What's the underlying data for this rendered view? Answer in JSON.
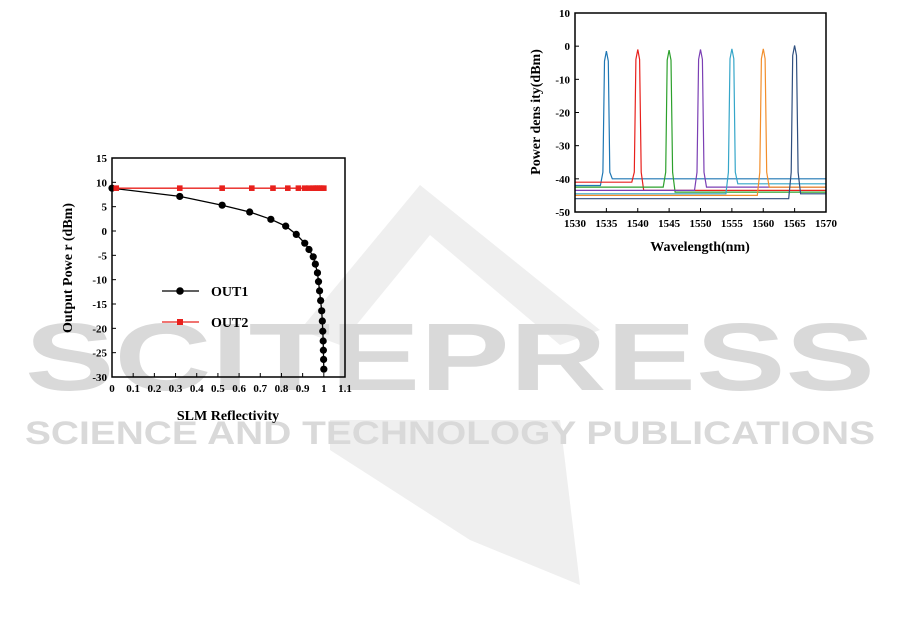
{
  "watermark": {
    "title": "SCITEPRESS",
    "subtitle": "SCIENCE AND TECHNOLOGY PUBLICATIONS",
    "color": "#d9d9d9"
  },
  "chart_data": [
    {
      "type": "line",
      "xlabel": "SLM Reflectivity",
      "ylabel": "Output Powe r (dBm)",
      "xlim": [
        0,
        1.1
      ],
      "ylim": [
        -30,
        15
      ],
      "x_ticks": [
        "0",
        "0.1",
        "0.2",
        "0.3",
        "0.4",
        "0.5",
        "0.6",
        "0.7",
        "0.8",
        "0.9",
        "1",
        "1.1"
      ],
      "y_ticks": [
        "15",
        "10",
        "5",
        "0",
        "-5",
        "-10",
        "-15",
        "-20",
        "-25",
        "-30"
      ],
      "legend_position": "center-left",
      "series": [
        {
          "name": "OUT1",
          "color": "#000000",
          "marker": "circle",
          "x": [
            0,
            0.32,
            0.52,
            0.65,
            0.75,
            0.82,
            0.87,
            0.91,
            0.93,
            0.95,
            0.96,
            0.97,
            0.975,
            0.98,
            0.985,
            0.99,
            0.993,
            0.995,
            0.997,
            0.998,
            0.999,
            1.0
          ],
          "y": [
            8.8,
            7.1,
            5.3,
            3.9,
            2.4,
            1.0,
            -0.7,
            -2.5,
            -3.8,
            -5.3,
            -6.8,
            -8.6,
            -10.4,
            -12.3,
            -14.3,
            -16.4,
            -18.5,
            -20.6,
            -22.6,
            -24.5,
            -26.4,
            -28.4
          ]
        },
        {
          "name": "OUT2",
          "color": "#e8201c",
          "marker": "square",
          "x": [
            0.02,
            0.32,
            0.52,
            0.66,
            0.76,
            0.83,
            0.88,
            0.91,
            0.93,
            0.95,
            0.96,
            0.97,
            0.98,
            0.99,
            1.0
          ],
          "y": [
            8.8,
            8.8,
            8.8,
            8.8,
            8.8,
            8.8,
            8.8,
            8.8,
            8.8,
            8.8,
            8.8,
            8.8,
            8.8,
            8.8,
            8.8
          ]
        }
      ]
    },
    {
      "type": "line",
      "xlabel": "Wavelength(nm)",
      "ylabel": "Power dens ity(dBm)",
      "xlim": [
        1530,
        1570
      ],
      "ylim": [
        -50,
        10
      ],
      "x_ticks": [
        "1530",
        "1535",
        "1540",
        "1545",
        "1550",
        "1555",
        "1560",
        "1565",
        "1570"
      ],
      "y_ticks": [
        "10",
        "0",
        "-10",
        "-20",
        "-30",
        "-40",
        "-50"
      ],
      "series": [
        {
          "color": "#1f77b4",
          "peak": 1535.0,
          "peak_y": -1.5,
          "floor_left": -42.0,
          "floor_right": -40.0
        },
        {
          "color": "#e8201c",
          "peak": 1540.0,
          "peak_y": -1.0,
          "floor_left": -41.0,
          "floor_right": -43.5
        },
        {
          "color": "#2ca02c",
          "peak": 1545.0,
          "peak_y": -1.2,
          "floor_left": -42.5,
          "floor_right": -44.0
        },
        {
          "color": "#7b3fb4",
          "peak": 1550.0,
          "peak_y": -1.0,
          "floor_left": -43.5,
          "floor_right": -42.5
        },
        {
          "color": "#35a6c9",
          "peak": 1555.0,
          "peak_y": -0.8,
          "floor_left": -44.5,
          "floor_right": -41.5
        },
        {
          "color": "#f28e2b",
          "peak": 1560.0,
          "peak_y": -0.8,
          "floor_left": -45.0,
          "floor_right": -42.5
        },
        {
          "color": "#2f4f7f",
          "peak": 1565.0,
          "peak_y": 0.2,
          "floor_left": -46.0,
          "floor_right": -44.5
        }
      ]
    }
  ]
}
